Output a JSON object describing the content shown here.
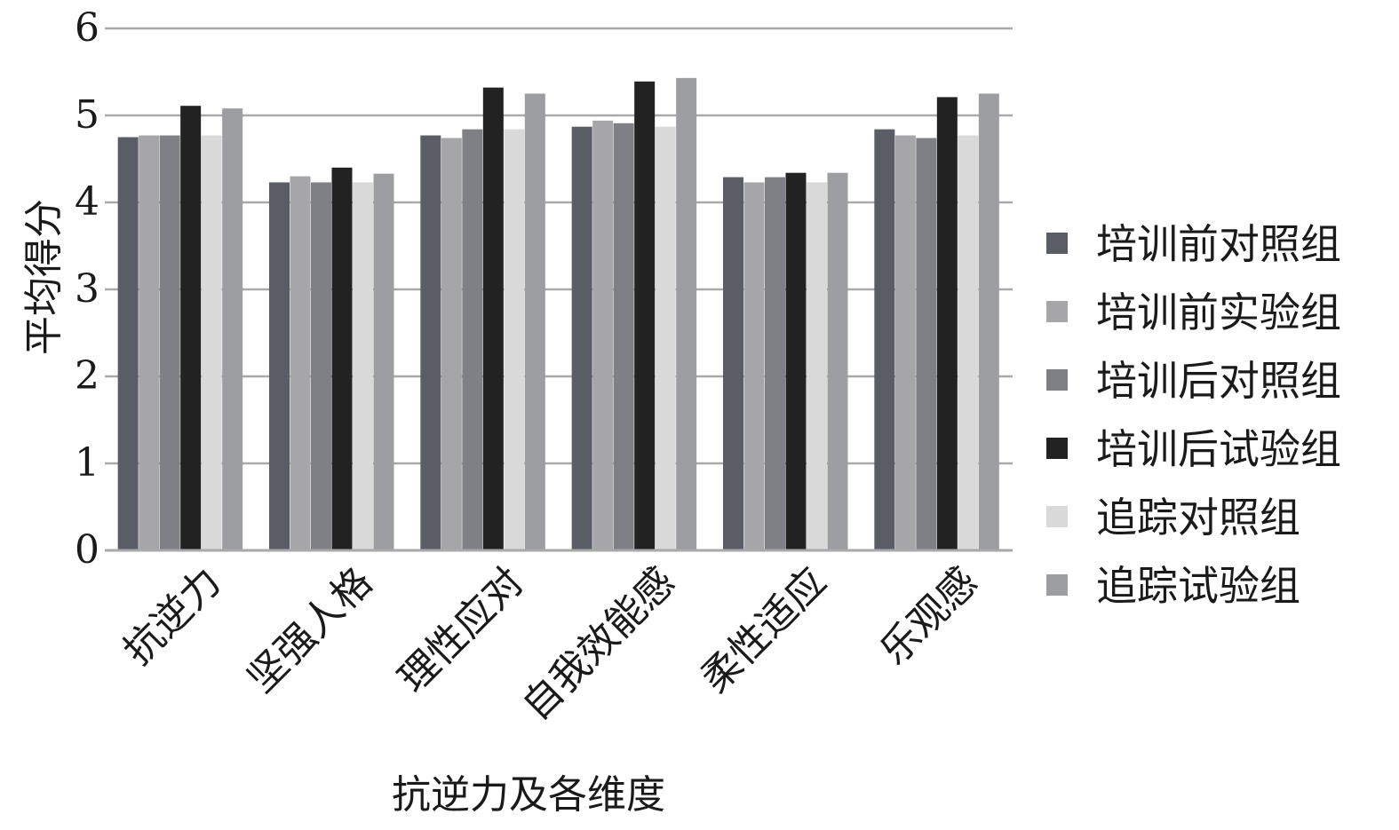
{
  "chart_data": {
    "type": "bar",
    "title": "",
    "xlabel": "抗逆力及各维度",
    "ylabel": "平均得分",
    "ylim": [
      0,
      6
    ],
    "yticks": [
      0,
      1,
      2,
      3,
      4,
      5,
      6
    ],
    "grid": true,
    "legend_position": "right",
    "categories": [
      "抗逆力",
      "坚强人格",
      "理性应对",
      "自我效能感",
      "柔性适应",
      "乐观感"
    ],
    "series": [
      {
        "name": "培训前对照组",
        "color": "#5a5d66",
        "values": [
          4.75,
          4.23,
          4.77,
          4.87,
          4.29,
          4.84
        ]
      },
      {
        "name": "培训前实验组",
        "color": "#a6a6a8",
        "values": [
          4.77,
          4.3,
          4.74,
          4.94,
          4.23,
          4.77
        ]
      },
      {
        "name": "培训后对照组",
        "color": "#7e8086",
        "values": [
          4.77,
          4.23,
          4.84,
          4.91,
          4.29,
          4.74
        ]
      },
      {
        "name": "培训后试验组",
        "color": "#222222",
        "values": [
          5.11,
          4.4,
          5.32,
          5.39,
          4.34,
          5.21
        ]
      },
      {
        "name": "追踪对照组",
        "color": "#d9d9d9",
        "values": [
          4.77,
          4.23,
          4.84,
          4.87,
          4.23,
          4.77
        ]
      },
      {
        "name": "追踪试验组",
        "color": "#9d9ea2",
        "values": [
          5.08,
          4.33,
          5.25,
          5.43,
          4.34,
          5.25
        ]
      }
    ]
  }
}
